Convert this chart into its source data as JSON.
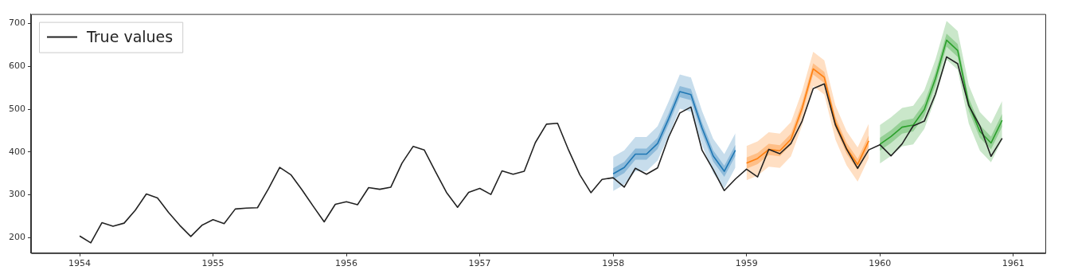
{
  "chart_data": {
    "type": "line",
    "legend": "top left",
    "grid": false,
    "ylim": [
      164,
      722
    ],
    "yticks": [
      200,
      300,
      400,
      500,
      600,
      700
    ],
    "xlim": [
      "1953-08-20",
      "1961-03-28"
    ],
    "xticks": [
      "1954",
      "1955",
      "1956",
      "1957",
      "1958",
      "1959",
      "1960",
      "1961"
    ],
    "series": [
      {
        "name": "True values",
        "color": "#222222",
        "x": [
          "1954-01",
          "1954-02",
          "1954-03",
          "1954-04",
          "1954-05",
          "1954-06",
          "1954-07",
          "1954-08",
          "1954-09",
          "1954-10",
          "1954-11",
          "1954-12",
          "1955-01",
          "1955-02",
          "1955-03",
          "1955-04",
          "1955-05",
          "1955-06",
          "1955-07",
          "1955-08",
          "1955-09",
          "1955-10",
          "1955-11",
          "1955-12",
          "1956-01",
          "1956-02",
          "1956-03",
          "1956-04",
          "1956-05",
          "1956-06",
          "1956-07",
          "1956-08",
          "1956-09",
          "1956-10",
          "1956-11",
          "1956-12",
          "1957-01",
          "1957-02",
          "1957-03",
          "1957-04",
          "1957-05",
          "1957-06",
          "1957-07",
          "1957-08",
          "1957-09",
          "1957-10",
          "1957-11",
          "1957-12",
          "1958-01",
          "1958-02",
          "1958-03",
          "1958-04",
          "1958-05",
          "1958-06",
          "1958-07",
          "1958-08",
          "1958-09",
          "1958-10",
          "1958-11",
          "1958-12",
          "1959-01",
          "1959-02",
          "1959-03",
          "1959-04",
          "1959-05",
          "1959-06",
          "1959-07",
          "1959-08",
          "1959-09",
          "1959-10",
          "1959-11",
          "1959-12",
          "1960-01",
          "1960-02",
          "1960-03",
          "1960-04",
          "1960-05",
          "1960-06",
          "1960-07",
          "1960-08",
          "1960-09",
          "1960-10",
          "1960-11",
          "1960-12"
        ],
        "values": [
          204,
          188,
          235,
          227,
          234,
          264,
          302,
          293,
          259,
          229,
          203,
          229,
          242,
          233,
          267,
          269,
          270,
          315,
          364,
          347,
          312,
          274,
          237,
          278,
          284,
          277,
          317,
          313,
          318,
          374,
          413,
          405,
          355,
          306,
          271,
          306,
          315,
          301,
          356,
          348,
          355,
          422,
          465,
          467,
          404,
          347,
          305,
          336,
          340,
          318,
          362,
          348,
          363,
          435,
          491,
          505,
          404,
          359,
          310,
          337,
          360,
          342,
          406,
          396,
          420,
          472,
          548,
          559,
          463,
          407,
          362,
          405,
          417,
          391,
          419,
          461,
          472,
          535,
          622,
          606,
          508,
          461,
          390,
          432
        ]
      },
      {
        "color": "#1f77b4",
        "x": [
          "1958-01",
          "1958-02",
          "1958-03",
          "1958-04",
          "1958-05",
          "1958-06",
          "1958-07",
          "1958-08",
          "1958-09",
          "1958-10",
          "1958-11",
          "1958-12"
        ],
        "values": [
          null,
          null,
          null,
          null,
          null,
          null,
          null,
          null,
          null,
          null,
          null,
          null
        ],
        "lower": [
          309,
          324,
          355,
          355,
          380,
          438,
          501,
          494,
          416,
          351,
          315,
          364
        ],
        "upper": [
          389,
          404,
          435,
          435,
          460,
          518,
          581,
          574,
          496,
          431,
          395,
          444
        ]
      },
      {
        "color": "#1f77b4",
        "x": [
          "1958-01",
          "1958-02",
          "1958-03",
          "1958-04",
          "1958-05",
          "1958-06",
          "1958-07",
          "1958-08",
          "1958-09",
          "1958-10",
          "1958-11",
          "1958-12"
        ],
        "values": [
          349,
          364,
          395,
          395,
          420,
          478,
          541,
          534,
          456,
          391,
          355,
          404
        ],
        "lower": [
          336,
          351,
          382,
          382,
          407,
          465,
          528,
          521,
          443,
          378,
          342,
          391
        ],
        "upper": [
          362,
          377,
          408,
          408,
          433,
          491,
          554,
          547,
          469,
          404,
          368,
          417
        ]
      },
      {
        "color": "#ff7f0e",
        "x": [
          "1959-01",
          "1959-02",
          "1959-03",
          "1959-04",
          "1959-05",
          "1959-06",
          "1959-07",
          "1959-08",
          "1959-09",
          "1959-10",
          "1959-11",
          "1959-12"
        ],
        "values": [
          null,
          null,
          null,
          null,
          null,
          null,
          null,
          null,
          null,
          null,
          null,
          null
        ],
        "lower": [
          334,
          345,
          366,
          363,
          390,
          462,
          554,
          534,
          429,
          369,
          331,
          386
        ],
        "upper": [
          414,
          425,
          446,
          443,
          470,
          542,
          634,
          614,
          509,
          449,
          411,
          466
        ]
      },
      {
        "color": "#ff7f0e",
        "x": [
          "1959-01",
          "1959-02",
          "1959-03",
          "1959-04",
          "1959-05",
          "1959-06",
          "1959-07",
          "1959-08",
          "1959-09",
          "1959-10",
          "1959-11",
          "1959-12"
        ],
        "values": [
          374,
          385,
          406,
          403,
          430,
          502,
          594,
          574,
          469,
          409,
          371,
          426
        ],
        "lower": [
          361,
          372,
          393,
          390,
          417,
          489,
          581,
          561,
          456,
          396,
          358,
          413
        ],
        "upper": [
          387,
          398,
          419,
          416,
          443,
          515,
          607,
          587,
          482,
          422,
          384,
          439
        ]
      },
      {
        "color": "#2ca02c",
        "x": [
          "1960-01",
          "1960-02",
          "1960-03",
          "1960-04",
          "1960-05",
          "1960-06",
          "1960-07",
          "1960-08",
          "1960-09",
          "1960-10",
          "1960-11",
          "1960-12"
        ],
        "values": [
          null,
          null,
          null,
          null,
          null,
          null,
          null,
          null,
          null,
          null,
          null,
          null
        ],
        "lower": [
          373,
          391,
          413,
          418,
          454,
          526,
          616,
          592,
          466,
          403,
          376,
          429
        ],
        "upper": [
          463,
          481,
          503,
          508,
          544,
          616,
          706,
          682,
          556,
          493,
          466,
          519
        ]
      },
      {
        "color": "#2ca02c",
        "x": [
          "1960-01",
          "1960-02",
          "1960-03",
          "1960-04",
          "1960-05",
          "1960-06",
          "1960-07",
          "1960-08",
          "1960-09",
          "1960-10",
          "1960-11",
          "1960-12"
        ],
        "values": [
          418,
          436,
          458,
          463,
          499,
          571,
          661,
          637,
          511,
          448,
          421,
          474
        ],
        "lower": [
          403,
          421,
          443,
          448,
          484,
          556,
          646,
          622,
          496,
          433,
          406,
          459
        ],
        "upper": [
          433,
          451,
          473,
          478,
          514,
          586,
          676,
          652,
          526,
          463,
          436,
          489
        ]
      }
    ]
  }
}
